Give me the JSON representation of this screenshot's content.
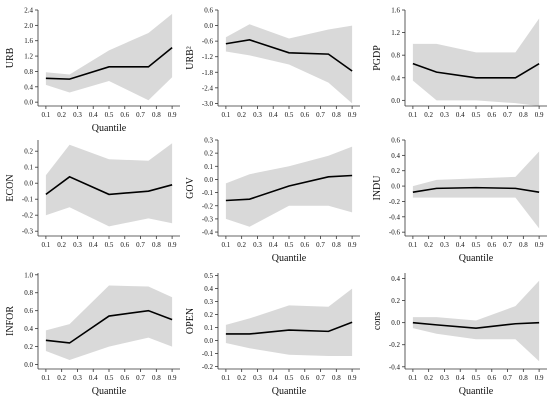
{
  "chart_data": [
    {
      "type": "line",
      "ylabel": "URB",
      "xlabel": "Quantile",
      "x": [
        0.1,
        0.25,
        0.5,
        0.75,
        0.9
      ],
      "x_ticks": [
        "0.1",
        "0.2",
        "0.3",
        "0.4",
        "0.5",
        "0.6",
        "0.7",
        "0.8",
        "0.9"
      ],
      "y_ticks": [
        "0.0",
        "0.4",
        "0.8",
        "1.2",
        "1.6",
        "2.0",
        "2.4"
      ],
      "ylim": [
        -0.1,
        2.4
      ],
      "estimate": [
        0.62,
        0.6,
        0.92,
        0.92,
        1.42
      ],
      "ci_lower": [
        0.45,
        0.25,
        0.55,
        0.05,
        0.65
      ],
      "ci_upper": [
        0.78,
        0.72,
        1.35,
        1.8,
        2.3
      ]
    },
    {
      "type": "line",
      "ylabel": "URB²",
      "xlabel": "",
      "x": [
        0.1,
        0.25,
        0.5,
        0.75,
        0.9
      ],
      "x_ticks": [
        "0.1",
        "0.2",
        "0.3",
        "0.4",
        "0.5",
        "0.6",
        "0.7",
        "0.8",
        "0.9"
      ],
      "y_ticks": [
        "-3.0",
        "-2.4",
        "-1.8",
        "-1.2",
        "-0.6",
        "0.0",
        "0.6"
      ],
      "ylim": [
        -3.1,
        0.6
      ],
      "estimate": [
        -0.7,
        -0.55,
        -1.05,
        -1.1,
        -1.75
      ],
      "ci_lower": [
        -1.0,
        -1.15,
        -1.5,
        -2.2,
        -3.0
      ],
      "ci_upper": [
        -0.45,
        0.05,
        -0.5,
        -0.15,
        0.0
      ]
    },
    {
      "type": "line",
      "ylabel": "PGDP",
      "xlabel": "",
      "x": [
        0.1,
        0.25,
        0.5,
        0.75,
        0.9
      ],
      "x_ticks": [
        "0.1",
        "0.2",
        "0.3",
        "0.4",
        "0.5",
        "0.6",
        "0.7",
        "0.8",
        "0.9"
      ],
      "y_ticks": [
        "0.0",
        "0.4",
        "0.8",
        "1.2",
        "1.6"
      ],
      "ylim": [
        -0.1,
        1.6
      ],
      "estimate": [
        0.65,
        0.5,
        0.4,
        0.4,
        0.65
      ],
      "ci_lower": [
        0.35,
        0.0,
        0.0,
        -0.05,
        -0.1
      ],
      "ci_upper": [
        1.0,
        1.0,
        0.85,
        0.85,
        1.45
      ]
    },
    {
      "type": "line",
      "ylabel": "ECON",
      "xlabel": "",
      "x": [
        0.1,
        0.25,
        0.5,
        0.75,
        0.9
      ],
      "x_ticks": [
        "0.1",
        "0.2",
        "0.3",
        "0.4",
        "0.5",
        "0.6",
        "0.7",
        "0.8",
        "0.9"
      ],
      "y_ticks": [
        "-0.3",
        "-0.2",
        "-0.1",
        "0.0",
        "0.1",
        "0.2"
      ],
      "ylim": [
        -0.33,
        0.27
      ],
      "estimate": [
        -0.07,
        0.04,
        -0.07,
        -0.05,
        -0.01
      ],
      "ci_lower": [
        -0.2,
        -0.15,
        -0.27,
        -0.22,
        -0.25
      ],
      "ci_upper": [
        0.05,
        0.24,
        0.15,
        0.14,
        0.25
      ]
    },
    {
      "type": "line",
      "ylabel": "GOV",
      "xlabel": "Quantile",
      "x": [
        0.1,
        0.25,
        0.5,
        0.75,
        0.9
      ],
      "x_ticks": [
        "0.1",
        "0.2",
        "0.3",
        "0.4",
        "0.5",
        "0.6",
        "0.7",
        "0.8",
        "0.9"
      ],
      "y_ticks": [
        "-0.4",
        "-0.3",
        "-0.2",
        "-0.1",
        "0.0",
        "0.1",
        "0.2",
        "0.3"
      ],
      "ylim": [
        -0.43,
        0.3
      ],
      "estimate": [
        -0.16,
        -0.15,
        -0.05,
        0.02,
        0.03
      ],
      "ci_lower": [
        -0.3,
        -0.36,
        -0.2,
        -0.2,
        -0.25
      ],
      "ci_upper": [
        -0.03,
        0.04,
        0.1,
        0.18,
        0.25
      ]
    },
    {
      "type": "line",
      "ylabel": "INDU",
      "xlabel": "Quantile",
      "x": [
        0.1,
        0.25,
        0.5,
        0.75,
        0.9
      ],
      "x_ticks": [
        "0.1",
        "0.2",
        "0.3",
        "0.4",
        "0.5",
        "0.6",
        "0.7",
        "0.8",
        "0.9"
      ],
      "y_ticks": [
        "-0.6",
        "-0.4",
        "-0.2",
        "0.0",
        "0.2",
        "0.4",
        "0.6"
      ],
      "ylim": [
        -0.65,
        0.6
      ],
      "estimate": [
        -0.08,
        -0.03,
        -0.02,
        -0.03,
        -0.08
      ],
      "ci_lower": [
        -0.15,
        -0.15,
        -0.15,
        -0.15,
        -0.55
      ],
      "ci_upper": [
        0.0,
        0.08,
        0.1,
        0.12,
        0.45
      ]
    },
    {
      "type": "line",
      "ylabel": "INFOR",
      "xlabel": "Quantile",
      "x": [
        0.1,
        0.25,
        0.5,
        0.75,
        0.9
      ],
      "x_ticks": [
        "0.1",
        "0.2",
        "0.3",
        "0.4",
        "0.5",
        "0.6",
        "0.7",
        "0.8",
        "0.9"
      ],
      "y_ticks": [
        "0.0",
        "0.2",
        "0.4",
        "0.6",
        "0.8",
        "1.0"
      ],
      "ylim": [
        -0.05,
        1.02
      ],
      "estimate": [
        0.27,
        0.24,
        0.54,
        0.6,
        0.5
      ],
      "ci_lower": [
        0.15,
        0.05,
        0.2,
        0.3,
        0.2
      ],
      "ci_upper": [
        0.38,
        0.45,
        0.88,
        0.87,
        0.75
      ]
    },
    {
      "type": "line",
      "ylabel": "OPEN",
      "xlabel": "Quantile",
      "x": [
        0.1,
        0.25,
        0.5,
        0.75,
        0.9
      ],
      "x_ticks": [
        "0.1",
        "0.2",
        "0.3",
        "0.4",
        "0.5",
        "0.6",
        "0.7",
        "0.8",
        "0.9"
      ],
      "y_ticks": [
        "-0.2",
        "-0.1",
        "0.0",
        "0.1",
        "0.2",
        "0.3",
        "0.4",
        "0.5"
      ],
      "ylim": [
        -0.22,
        0.52
      ],
      "estimate": [
        0.05,
        0.05,
        0.08,
        0.07,
        0.14
      ],
      "ci_lower": [
        -0.02,
        -0.06,
        -0.11,
        -0.12,
        -0.12
      ],
      "ci_upper": [
        0.12,
        0.17,
        0.27,
        0.26,
        0.4
      ]
    },
    {
      "type": "line",
      "ylabel": "cons",
      "xlabel": "Quantile",
      "x": [
        0.1,
        0.25,
        0.5,
        0.75,
        0.9
      ],
      "x_ticks": [
        "0.1",
        "0.2",
        "0.3",
        "0.4",
        "0.5",
        "0.6",
        "0.7",
        "0.8",
        "0.9"
      ],
      "y_ticks": [
        "-0.4",
        "-0.2",
        "0.0",
        "0.2",
        "0.4"
      ],
      "ylim": [
        -0.42,
        0.45
      ],
      "estimate": [
        0.0,
        -0.02,
        -0.05,
        -0.01,
        0.0
      ],
      "ci_lower": [
        -0.05,
        -0.1,
        -0.15,
        -0.15,
        -0.35
      ],
      "ci_upper": [
        0.05,
        0.05,
        0.02,
        0.15,
        0.38
      ]
    }
  ],
  "colors": {
    "band": "#d9d9d9",
    "line": "#000000",
    "axis": "#333333"
  }
}
